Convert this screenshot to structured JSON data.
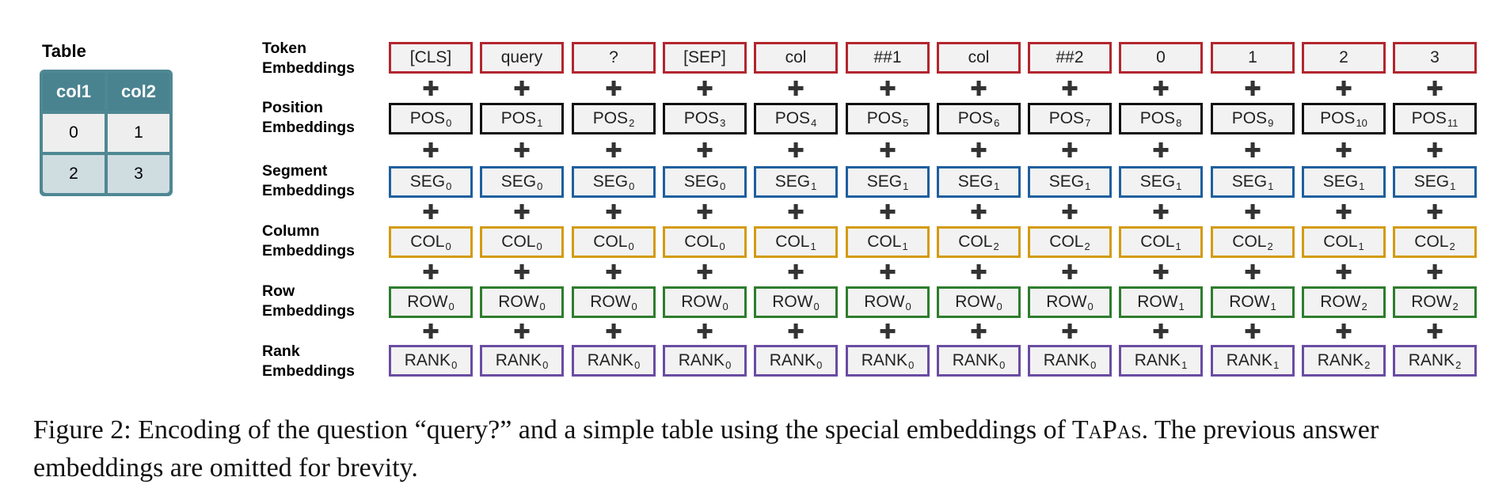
{
  "table": {
    "title": "Table",
    "headers": [
      "col1",
      "col2"
    ],
    "rows": [
      [
        "0",
        "1"
      ],
      [
        "2",
        "3"
      ]
    ]
  },
  "rows": [
    {
      "label_line1": "Token",
      "label_line2": "Embeddings",
      "color": "#b3262f",
      "cells": [
        {
          "base": "[CLS]",
          "sub": ""
        },
        {
          "base": "query",
          "sub": ""
        },
        {
          "base": "?",
          "sub": ""
        },
        {
          "base": "[SEP]",
          "sub": ""
        },
        {
          "base": "col",
          "sub": ""
        },
        {
          "base": "##1",
          "sub": ""
        },
        {
          "base": "col",
          "sub": ""
        },
        {
          "base": "##2",
          "sub": ""
        },
        {
          "base": "0",
          "sub": ""
        },
        {
          "base": "1",
          "sub": ""
        },
        {
          "base": "2",
          "sub": ""
        },
        {
          "base": "3",
          "sub": ""
        }
      ]
    },
    {
      "label_line1": "Position",
      "label_line2": "Embeddings",
      "color": "#111111",
      "cells": [
        {
          "base": "POS",
          "sub": "0"
        },
        {
          "base": "POS",
          "sub": "1"
        },
        {
          "base": "POS",
          "sub": "2"
        },
        {
          "base": "POS",
          "sub": "3"
        },
        {
          "base": "POS",
          "sub": "4"
        },
        {
          "base": "POS",
          "sub": "5"
        },
        {
          "base": "POS",
          "sub": "6"
        },
        {
          "base": "POS",
          "sub": "7"
        },
        {
          "base": "POS",
          "sub": "8"
        },
        {
          "base": "POS",
          "sub": "9"
        },
        {
          "base": "POS",
          "sub": "10"
        },
        {
          "base": "POS",
          "sub": "11"
        }
      ]
    },
    {
      "label_line1": "Segment",
      "label_line2": "Embeddings",
      "color": "#1f5f9e",
      "cells": [
        {
          "base": "SEG",
          "sub": "0"
        },
        {
          "base": "SEG",
          "sub": "0"
        },
        {
          "base": "SEG",
          "sub": "0"
        },
        {
          "base": "SEG",
          "sub": "0"
        },
        {
          "base": "SEG",
          "sub": "1"
        },
        {
          "base": "SEG",
          "sub": "1"
        },
        {
          "base": "SEG",
          "sub": "1"
        },
        {
          "base": "SEG",
          "sub": "1"
        },
        {
          "base": "SEG",
          "sub": "1"
        },
        {
          "base": "SEG",
          "sub": "1"
        },
        {
          "base": "SEG",
          "sub": "1"
        },
        {
          "base": "SEG",
          "sub": "1"
        }
      ]
    },
    {
      "label_line1": "Column",
      "label_line2": "Embeddings",
      "color": "#d39b10",
      "cells": [
        {
          "base": "COL",
          "sub": "0"
        },
        {
          "base": "COL",
          "sub": "0"
        },
        {
          "base": "COL",
          "sub": "0"
        },
        {
          "base": "COL",
          "sub": "0"
        },
        {
          "base": "COL",
          "sub": "1"
        },
        {
          "base": "COL",
          "sub": "1"
        },
        {
          "base": "COL",
          "sub": "2"
        },
        {
          "base": "COL",
          "sub": "2"
        },
        {
          "base": "COL",
          "sub": "1"
        },
        {
          "base": "COL",
          "sub": "2"
        },
        {
          "base": "COL",
          "sub": "1"
        },
        {
          "base": "COL",
          "sub": "2"
        }
      ]
    },
    {
      "label_line1": "Row",
      "label_line2": "Embeddings",
      "color": "#2e7d2e",
      "cells": [
        {
          "base": "ROW",
          "sub": "0"
        },
        {
          "base": "ROW",
          "sub": "0"
        },
        {
          "base": "ROW",
          "sub": "0"
        },
        {
          "base": "ROW",
          "sub": "0"
        },
        {
          "base": "ROW",
          "sub": "0"
        },
        {
          "base": "ROW",
          "sub": "0"
        },
        {
          "base": "ROW",
          "sub": "0"
        },
        {
          "base": "ROW",
          "sub": "0"
        },
        {
          "base": "ROW",
          "sub": "1"
        },
        {
          "base": "ROW",
          "sub": "1"
        },
        {
          "base": "ROW",
          "sub": "2"
        },
        {
          "base": "ROW",
          "sub": "2"
        }
      ]
    },
    {
      "label_line1": "Rank",
      "label_line2": "Embeddings",
      "color": "#6a4ca3",
      "cells": [
        {
          "base": "RANK",
          "sub": "0"
        },
        {
          "base": "RANK",
          "sub": "0"
        },
        {
          "base": "RANK",
          "sub": "0"
        },
        {
          "base": "RANK",
          "sub": "0"
        },
        {
          "base": "RANK",
          "sub": "0"
        },
        {
          "base": "RANK",
          "sub": "0"
        },
        {
          "base": "RANK",
          "sub": "0"
        },
        {
          "base": "RANK",
          "sub": "0"
        },
        {
          "base": "RANK",
          "sub": "1"
        },
        {
          "base": "RANK",
          "sub": "1"
        },
        {
          "base": "RANK",
          "sub": "2"
        },
        {
          "base": "RANK",
          "sub": "2"
        }
      ]
    }
  ],
  "plus_symbol": "✚",
  "caption": {
    "part1": "Figure 2: Encoding of the question “query?” and a simple table using the special embeddings of ",
    "name_first": "T",
    "name_a": "a",
    "name_p": "P",
    "name_as": "as",
    "part2": ". The previous answer embeddings are omitted for brevity."
  }
}
